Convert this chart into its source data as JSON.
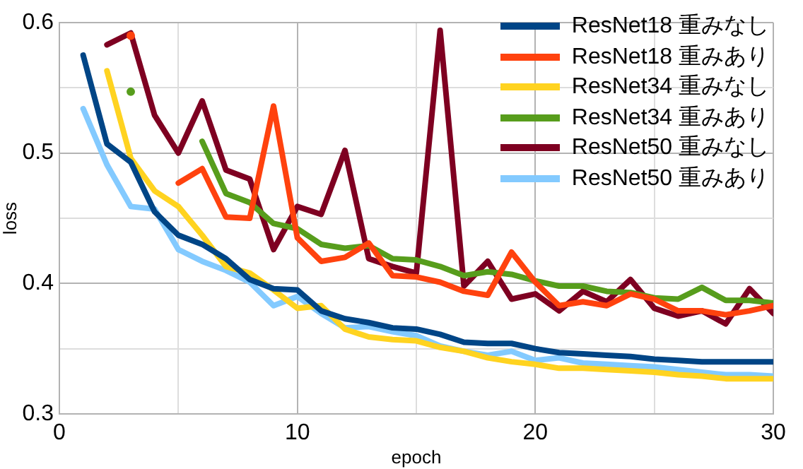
{
  "chart_data": {
    "type": "line",
    "xlabel": "epoch",
    "ylabel": "loss",
    "x": [
      1,
      2,
      3,
      4,
      5,
      6,
      7,
      8,
      9,
      10,
      11,
      12,
      13,
      14,
      15,
      16,
      17,
      18,
      19,
      20,
      21,
      22,
      23,
      24,
      25,
      26,
      27,
      28,
      29,
      30
    ],
    "xlim": [
      0,
      30
    ],
    "xticks": [
      0,
      {
        "value": 5,
        "label": null
      },
      10,
      {
        "value": 15,
        "label": null
      },
      20,
      {
        "value": 25,
        "label": null
      },
      30
    ],
    "ylim": [
      0.3,
      0.6
    ],
    "yticks": [
      0.3,
      {
        "value": 0.35,
        "label": null
      },
      0.4,
      {
        "value": 0.45,
        "label": null
      },
      0.5,
      {
        "value": 0.55,
        "label": null
      },
      0.6
    ],
    "grid": true,
    "legend": "top right",
    "marker": "none",
    "line_style": "solid",
    "series": [
      {
        "name": "ResNet18 重みなし",
        "color": "#004586",
        "values": [
          0.575,
          0.507,
          0.493,
          0.455,
          0.437,
          0.43,
          0.419,
          0.403,
          0.396,
          0.395,
          0.379,
          0.373,
          0.37,
          0.366,
          0.365,
          0.361,
          0.355,
          0.354,
          0.354,
          0.35,
          0.347,
          0.346,
          0.345,
          0.344,
          0.342,
          0.341,
          0.34,
          0.34,
          0.34,
          0.34
        ]
      },
      {
        "name": "ResNet18 重みあり",
        "color": "#ff420e",
        "values": [
          null,
          null,
          0.59,
          null,
          0.477,
          0.488,
          0.451,
          0.45,
          0.536,
          0.435,
          0.417,
          0.42,
          0.431,
          0.406,
          0.405,
          0.401,
          0.394,
          0.391,
          0.424,
          0.401,
          0.383,
          0.386,
          0.383,
          0.392,
          0.388,
          0.379,
          0.379,
          0.376,
          0.379,
          0.383
        ]
      },
      {
        "name": "ResNet34 重みなし",
        "color": "#ffd320",
        "values": [
          null,
          0.563,
          0.496,
          0.471,
          0.459,
          0.437,
          0.413,
          0.408,
          0.395,
          0.381,
          0.383,
          0.365,
          0.359,
          0.357,
          0.356,
          0.351,
          0.348,
          0.343,
          0.34,
          0.338,
          0.335,
          0.335,
          0.334,
          0.333,
          0.332,
          0.33,
          0.329,
          0.327,
          0.327,
          0.327
        ]
      },
      {
        "name": "ResNet34 重みあり",
        "color": "#579d1c",
        "values": [
          null,
          null,
          0.547,
          null,
          null,
          0.509,
          0.469,
          0.462,
          0.446,
          0.442,
          0.43,
          0.427,
          0.429,
          0.419,
          0.418,
          0.413,
          0.406,
          0.409,
          0.407,
          0.402,
          0.398,
          0.398,
          0.394,
          0.393,
          0.389,
          0.388,
          0.397,
          0.387,
          0.387,
          0.385
        ]
      },
      {
        "name": "ResNet50 重みなし",
        "color": "#7e0021",
        "values": [
          null,
          0.583,
          0.592,
          0.529,
          0.5,
          0.54,
          0.487,
          0.48,
          0.426,
          0.459,
          0.453,
          0.502,
          0.419,
          0.413,
          0.408,
          0.594,
          0.398,
          0.417,
          0.388,
          0.392,
          0.379,
          0.394,
          0.386,
          0.403,
          0.381,
          0.375,
          0.379,
          0.369,
          0.396,
          0.377
        ]
      },
      {
        "name": "ResNet50 重みあり",
        "color": "#83caff",
        "values": [
          0.534,
          0.491,
          0.459,
          0.457,
          0.426,
          0.417,
          0.41,
          0.401,
          0.383,
          0.39,
          0.377,
          0.366,
          0.367,
          0.363,
          0.36,
          0.352,
          0.348,
          0.345,
          0.348,
          0.341,
          0.343,
          0.339,
          0.338,
          0.337,
          0.336,
          0.334,
          0.332,
          0.33,
          0.33,
          0.329
        ]
      }
    ]
  }
}
